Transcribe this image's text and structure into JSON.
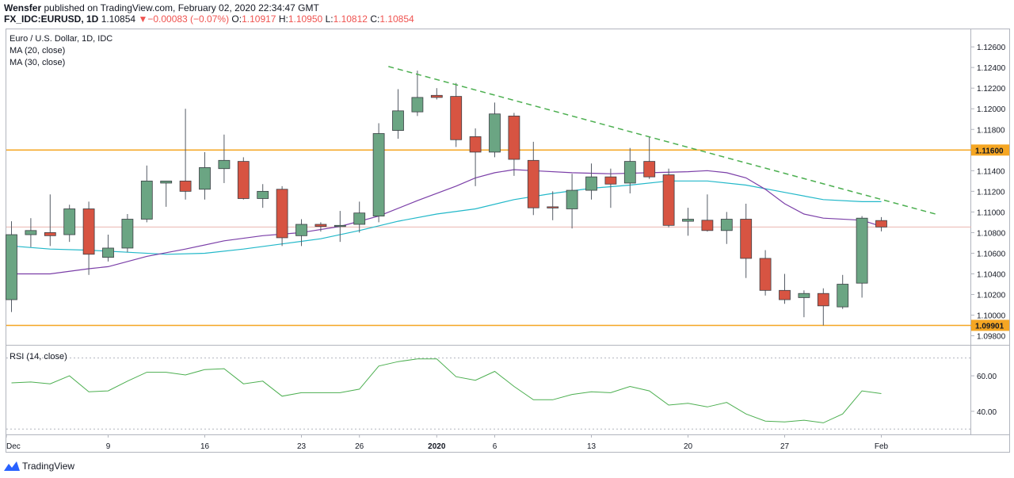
{
  "header": {
    "author": "Wensfer",
    "published_text": "published on TradingView.com, February 02, 2020 22:34:47 GMT",
    "symbol": "FX_IDC:EURUSD, 1D",
    "last": "1.10854",
    "change_arrow": "▼",
    "change": "−0.00083 (−0.07%)",
    "o_label": "O:",
    "o": "1.10917",
    "h_label": "H:",
    "h": "1.10950",
    "l_label": "L:",
    "l": "1.10812",
    "c_label": "C:",
    "c": "1.10854"
  },
  "legend": {
    "title": "Euro / U.S. Dollar, 1D, IDC",
    "ma20": "MA (20, close)",
    "ma30": "MA (30, close)"
  },
  "rsi_legend": "RSI (14, close)",
  "footer": {
    "brand": "TradingView"
  },
  "colors": {
    "up": "#6ba583",
    "down": "#d75442",
    "ma20": "#7b3fa8",
    "ma30": "#22b8c9",
    "level": "#f5a623",
    "trend": "#4caf50",
    "rsi": "#4caf50"
  },
  "chart_data": {
    "type": "candlestick",
    "y_ticks": [
      "1.12600",
      "1.12400",
      "1.12200",
      "1.12000",
      "1.11800",
      "1.11400",
      "1.11200",
      "1.11000",
      "1.10800",
      "1.10600",
      "1.10400",
      "1.10200",
      "1.10000",
      "1.09800"
    ],
    "ylim": [
      1.0972,
      1.1277
    ],
    "levels": [
      {
        "value": 1.116,
        "label": "1.11600"
      },
      {
        "value": 1.09901,
        "label": "1.09901"
      }
    ],
    "x_ticks": [
      {
        "label": "Dec",
        "i": 0
      },
      {
        "label": "9",
        "i": 5
      },
      {
        "label": "16",
        "i": 10
      },
      {
        "label": "23",
        "i": 15
      },
      {
        "label": "26",
        "i": 18
      },
      {
        "label": "2020",
        "i": 22
      },
      {
        "label": "6",
        "i": 25
      },
      {
        "label": "13",
        "i": 30
      },
      {
        "label": "20",
        "i": 35
      },
      {
        "label": "27",
        "i": 40
      },
      {
        "label": "Feb",
        "i": 45
      }
    ],
    "candles": [
      {
        "o": 1.1015,
        "h": 1.1091,
        "l": 1.1003,
        "c": 1.1078
      },
      {
        "o": 1.1078,
        "h": 1.1094,
        "l": 1.1066,
        "c": 1.1082
      },
      {
        "o": 1.108,
        "h": 1.1117,
        "l": 1.1067,
        "c": 1.1077
      },
      {
        "o": 1.1078,
        "h": 1.1107,
        "l": 1.1071,
        "c": 1.1103
      },
      {
        "o": 1.1103,
        "h": 1.111,
        "l": 1.1039,
        "c": 1.1059
      },
      {
        "o": 1.1056,
        "h": 1.1078,
        "l": 1.1052,
        "c": 1.1065
      },
      {
        "o": 1.1065,
        "h": 1.1098,
        "l": 1.1061,
        "c": 1.1093
      },
      {
        "o": 1.1093,
        "h": 1.1145,
        "l": 1.109,
        "c": 1.113
      },
      {
        "o": 1.1128,
        "h": 1.113,
        "l": 1.1105,
        "c": 1.113
      },
      {
        "o": 1.113,
        "h": 1.12,
        "l": 1.1112,
        "c": 1.112
      },
      {
        "o": 1.1122,
        "h": 1.1158,
        "l": 1.1112,
        "c": 1.1143
      },
      {
        "o": 1.1142,
        "h": 1.1175,
        "l": 1.1128,
        "c": 1.115
      },
      {
        "o": 1.1149,
        "h": 1.1153,
        "l": 1.1112,
        "c": 1.1113
      },
      {
        "o": 1.1113,
        "h": 1.1127,
        "l": 1.1104,
        "c": 1.112
      },
      {
        "o": 1.1122,
        "h": 1.1125,
        "l": 1.1067,
        "c": 1.1075
      },
      {
        "o": 1.1077,
        "h": 1.1093,
        "l": 1.1067,
        "c": 1.1088
      },
      {
        "o": 1.1088,
        "h": 1.109,
        "l": 1.1081,
        "c": 1.1086
      },
      {
        "o": 1.1086,
        "h": 1.1101,
        "l": 1.1071,
        "c": 1.1087
      },
      {
        "o": 1.1088,
        "h": 1.111,
        "l": 1.108,
        "c": 1.1099
      },
      {
        "o": 1.1096,
        "h": 1.1186,
        "l": 1.109,
        "c": 1.1176
      },
      {
        "o": 1.1179,
        "h": 1.1219,
        "l": 1.1171,
        "c": 1.1198
      },
      {
        "o": 1.1197,
        "h": 1.1237,
        "l": 1.1193,
        "c": 1.1211
      },
      {
        "o": 1.1213,
        "h": 1.122,
        "l": 1.1209,
        "c": 1.1211
      },
      {
        "o": 1.1212,
        "h": 1.1225,
        "l": 1.1163,
        "c": 1.117
      },
      {
        "o": 1.1173,
        "h": 1.1181,
        "l": 1.1125,
        "c": 1.1158
      },
      {
        "o": 1.1158,
        "h": 1.1206,
        "l": 1.1153,
        "c": 1.1195
      },
      {
        "o": 1.1193,
        "h": 1.1196,
        "l": 1.1135,
        "c": 1.1151
      },
      {
        "o": 1.115,
        "h": 1.1168,
        "l": 1.1097,
        "c": 1.1104
      },
      {
        "o": 1.1105,
        "h": 1.112,
        "l": 1.1092,
        "c": 1.1104
      },
      {
        "o": 1.1103,
        "h": 1.1137,
        "l": 1.1084,
        "c": 1.1121
      },
      {
        "o": 1.1121,
        "h": 1.1147,
        "l": 1.1112,
        "c": 1.1134
      },
      {
        "o": 1.1134,
        "h": 1.1142,
        "l": 1.1104,
        "c": 1.1127
      },
      {
        "o": 1.1128,
        "h": 1.1162,
        "l": 1.1118,
        "c": 1.1149
      },
      {
        "o": 1.1149,
        "h": 1.1173,
        "l": 1.1132,
        "c": 1.1134
      },
      {
        "o": 1.1136,
        "h": 1.1142,
        "l": 1.1085,
        "c": 1.1087
      },
      {
        "o": 1.1091,
        "h": 1.1104,
        "l": 1.1077,
        "c": 1.1093
      },
      {
        "o": 1.1092,
        "h": 1.1117,
        "l": 1.1081,
        "c": 1.1082
      },
      {
        "o": 1.1082,
        "h": 1.11,
        "l": 1.1069,
        "c": 1.1093
      },
      {
        "o": 1.1093,
        "h": 1.1108,
        "l": 1.1036,
        "c": 1.1055
      },
      {
        "o": 1.1055,
        "h": 1.1063,
        "l": 1.1019,
        "c": 1.1024
      },
      {
        "o": 1.1024,
        "h": 1.104,
        "l": 1.1011,
        "c": 1.1015
      },
      {
        "o": 1.1017,
        "h": 1.1024,
        "l": 1.0998,
        "c": 1.1021
      },
      {
        "o": 1.1021,
        "h": 1.1026,
        "l": 1.099,
        "c": 1.1009
      },
      {
        "o": 1.1008,
        "h": 1.1039,
        "l": 1.1006,
        "c": 1.103
      },
      {
        "o": 1.1031,
        "h": 1.1096,
        "l": 1.1017,
        "c": 1.1094
      },
      {
        "o": 1.10917,
        "h": 1.1095,
        "l": 1.10812,
        "c": 1.10854
      }
    ],
    "ma20": [
      {
        "i": 0,
        "v": 1.104
      },
      {
        "i": 2,
        "v": 1.104
      },
      {
        "i": 4,
        "v": 1.1045
      },
      {
        "i": 5,
        "v": 1.1047
      },
      {
        "i": 7,
        "v": 1.1057
      },
      {
        "i": 9,
        "v": 1.1064
      },
      {
        "i": 11,
        "v": 1.1072
      },
      {
        "i": 13,
        "v": 1.1077
      },
      {
        "i": 15,
        "v": 1.108
      },
      {
        "i": 17,
        "v": 1.1086
      },
      {
        "i": 19,
        "v": 1.1096
      },
      {
        "i": 21,
        "v": 1.1111
      },
      {
        "i": 23,
        "v": 1.1125
      },
      {
        "i": 24,
        "v": 1.1133
      },
      {
        "i": 25,
        "v": 1.1138
      },
      {
        "i": 26,
        "v": 1.1141
      },
      {
        "i": 27,
        "v": 1.114
      },
      {
        "i": 29,
        "v": 1.1138
      },
      {
        "i": 31,
        "v": 1.1137
      },
      {
        "i": 33,
        "v": 1.1138
      },
      {
        "i": 35,
        "v": 1.1139
      },
      {
        "i": 36,
        "v": 1.114
      },
      {
        "i": 37,
        "v": 1.1138
      },
      {
        "i": 38,
        "v": 1.1133
      },
      {
        "i": 39,
        "v": 1.1122
      },
      {
        "i": 40,
        "v": 1.1108
      },
      {
        "i": 41,
        "v": 1.1098
      },
      {
        "i": 42,
        "v": 1.1094
      },
      {
        "i": 44,
        "v": 1.1092
      },
      {
        "i": 45,
        "v": 1.1086
      }
    ],
    "ma30": [
      {
        "i": 0,
        "v": 1.1067
      },
      {
        "i": 2,
        "v": 1.1064
      },
      {
        "i": 4,
        "v": 1.1063
      },
      {
        "i": 6,
        "v": 1.1061
      },
      {
        "i": 8,
        "v": 1.1059
      },
      {
        "i": 10,
        "v": 1.106
      },
      {
        "i": 12,
        "v": 1.1064
      },
      {
        "i": 14,
        "v": 1.1069
      },
      {
        "i": 16,
        "v": 1.1074
      },
      {
        "i": 18,
        "v": 1.1082
      },
      {
        "i": 20,
        "v": 1.1091
      },
      {
        "i": 22,
        "v": 1.1098
      },
      {
        "i": 24,
        "v": 1.1103
      },
      {
        "i": 26,
        "v": 1.1112
      },
      {
        "i": 28,
        "v": 1.1118
      },
      {
        "i": 30,
        "v": 1.1123
      },
      {
        "i": 32,
        "v": 1.1126
      },
      {
        "i": 34,
        "v": 1.113
      },
      {
        "i": 36,
        "v": 1.113
      },
      {
        "i": 38,
        "v": 1.1126
      },
      {
        "i": 40,
        "v": 1.1119
      },
      {
        "i": 42,
        "v": 1.1112
      },
      {
        "i": 44,
        "v": 1.111
      },
      {
        "i": 45,
        "v": 1.111
      }
    ],
    "trendline": [
      {
        "i": 19.5,
        "v": 1.1241
      },
      {
        "i": 47.8,
        "v": 1.1098
      }
    ],
    "rsi": {
      "label": "RSI (14, close)",
      "ticks": [
        "60.00",
        "40.00"
      ],
      "ylim": [
        27,
        77
      ],
      "bands": [
        70,
        30
      ],
      "values": [
        56,
        56.5,
        55.5,
        60,
        51,
        51.5,
        57,
        62,
        62,
        60.5,
        63.5,
        64,
        55.5,
        57,
        48.5,
        50.5,
        50.5,
        50.5,
        52.5,
        65.5,
        68,
        69.5,
        69.5,
        59.5,
        57.5,
        62.5,
        54,
        46.5,
        46.5,
        49.5,
        51,
        50.5,
        54,
        51.5,
        43.5,
        44.5,
        42.5,
        45,
        38.5,
        34.5,
        34,
        35,
        33.5,
        38.5,
        51.5,
        50
      ]
    }
  }
}
